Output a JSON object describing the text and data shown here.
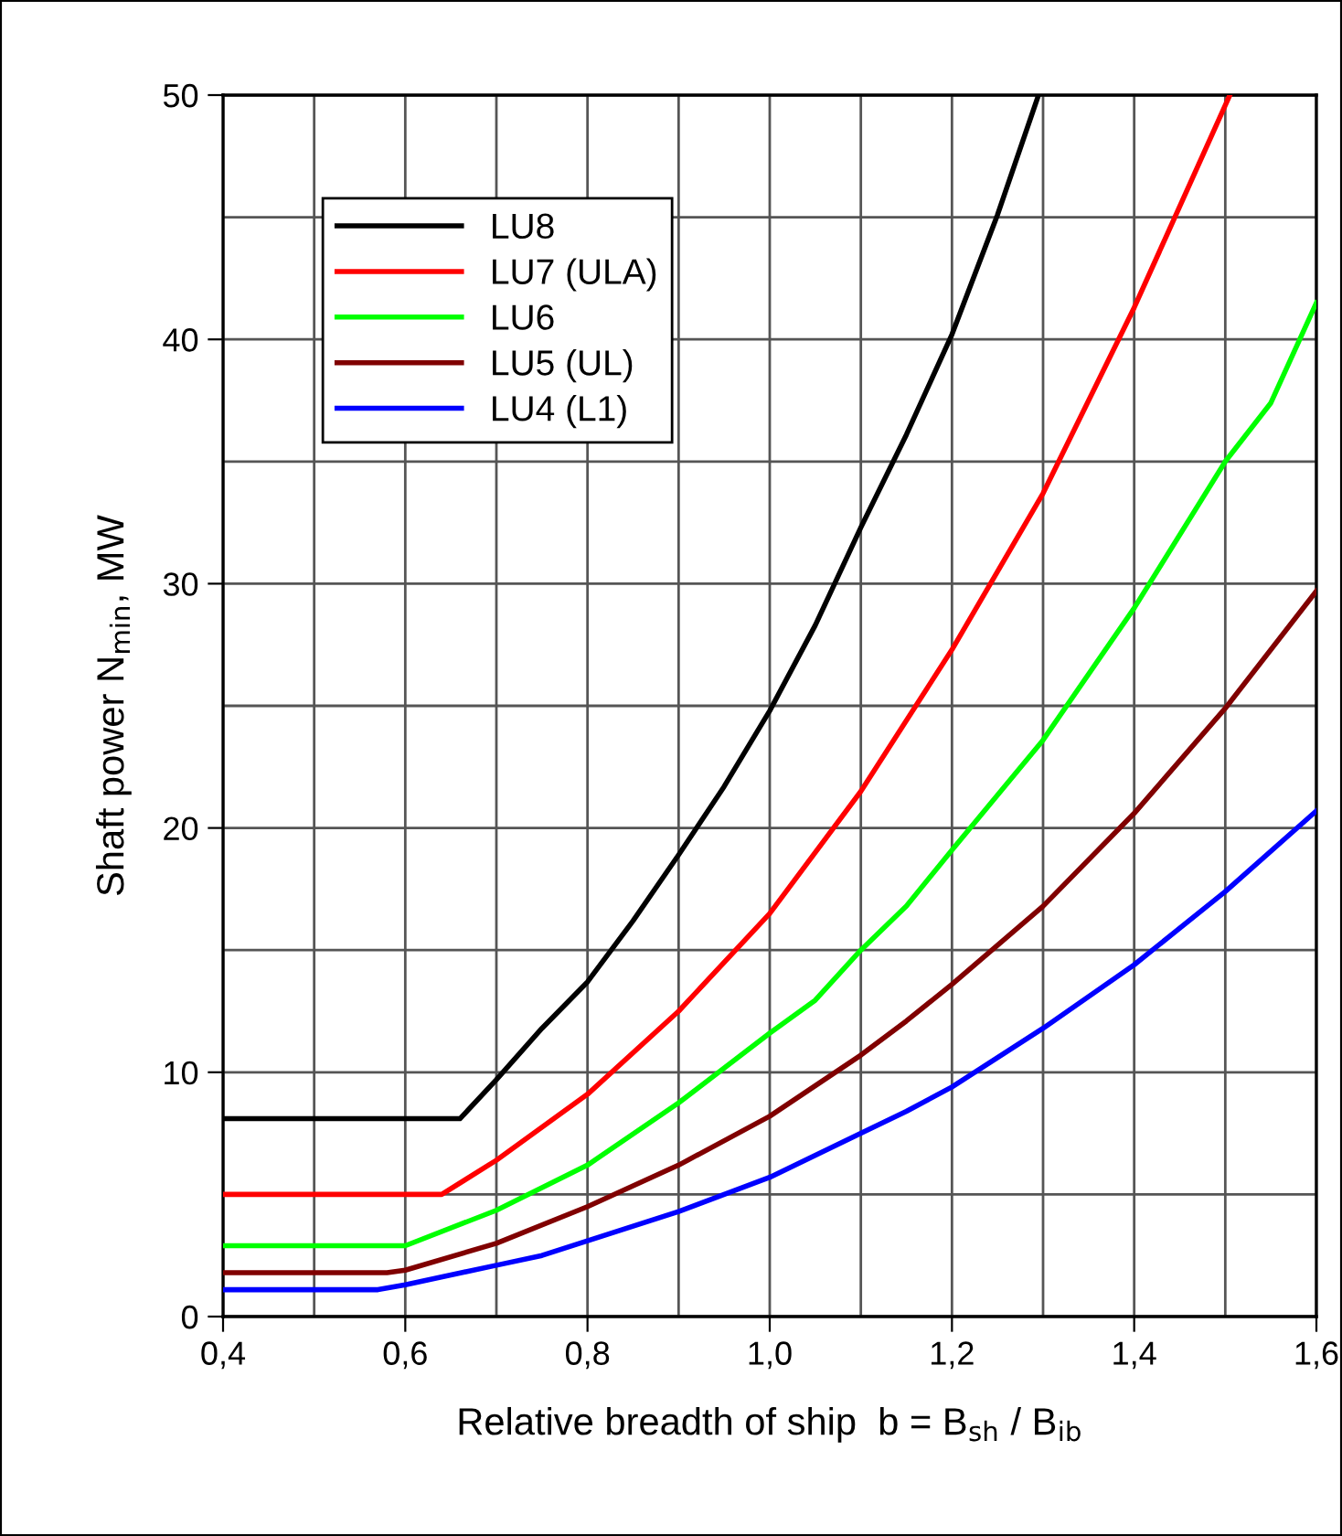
{
  "chart_data": {
    "type": "line",
    "xlabel": "Relative breadth of ship  b = B$_{sh}$ / B$_{ib}$",
    "ylabel": "Shaft power N$_{min}$, MW",
    "xlim": [
      0.4,
      1.6
    ],
    "ylim": [
      0,
      50
    ],
    "xticks": [
      {
        "value": 0.4,
        "label": "0,4"
      },
      {
        "value": 0.5,
        "label": null
      },
      {
        "value": 0.6,
        "label": "0,6"
      },
      {
        "value": 0.7,
        "label": null
      },
      {
        "value": 0.8,
        "label": "0,8"
      },
      {
        "value": 0.9,
        "label": null
      },
      {
        "value": 1.0,
        "label": "1,0"
      },
      {
        "value": 1.1,
        "label": null
      },
      {
        "value": 1.2,
        "label": "1,2"
      },
      {
        "value": 1.3,
        "label": null
      },
      {
        "value": 1.4,
        "label": "1,4"
      },
      {
        "value": 1.5,
        "label": null
      },
      {
        "value": 1.6,
        "label": "1,6"
      }
    ],
    "yticks": [
      0,
      {
        "value": 5,
        "label": null
      },
      10,
      {
        "value": 15,
        "label": null
      },
      20,
      {
        "value": 25,
        "label": null
      },
      30,
      {
        "value": 35,
        "label": null
      },
      40,
      {
        "value": 45,
        "label": null
      },
      50
    ],
    "grid": true,
    "legend": "top left",
    "marker": "none",
    "line_style": "solid",
    "series": [
      {
        "name": "LU8",
        "color": "#000000",
        "x": [
          0.4,
          0.66,
          0.7,
          0.75,
          0.8,
          0.85,
          0.9,
          0.95,
          1.0,
          1.05,
          1.1,
          1.15,
          1.2,
          1.25,
          1.295
        ],
        "values": [
          8.1,
          8.1,
          9.7,
          11.8,
          13.7,
          16.2,
          18.9,
          21.7,
          24.8,
          28.3,
          32.3,
          36.1,
          40.2,
          45.1,
          50
        ]
      },
      {
        "name": "LU7 (ULA)",
        "color": "#ff0000",
        "x": [
          0.4,
          0.64,
          0.7,
          0.8,
          0.9,
          1.0,
          1.1,
          1.2,
          1.3,
          1.4,
          1.505
        ],
        "values": [
          5.0,
          5.0,
          6.4,
          9.1,
          12.5,
          16.5,
          21.5,
          27.3,
          33.7,
          41.3,
          50
        ]
      },
      {
        "name": "LU6",
        "color": "#00ff00",
        "x": [
          0.4,
          0.6,
          0.7,
          0.8,
          0.9,
          1.0,
          1.05,
          1.1,
          1.15,
          1.2,
          1.3,
          1.4,
          1.5,
          1.55,
          1.6
        ],
        "values": [
          2.9,
          2.9,
          4.35,
          6.2,
          8.75,
          11.6,
          12.95,
          15.0,
          16.8,
          19.1,
          23.6,
          29.0,
          35.0,
          37.4,
          41.5
        ]
      },
      {
        "name": "LU5 (UL)",
        "color": "#800000",
        "x": [
          0.4,
          0.58,
          0.6,
          0.7,
          0.8,
          0.9,
          1.0,
          1.1,
          1.15,
          1.2,
          1.3,
          1.4,
          1.5,
          1.6
        ],
        "values": [
          1.8,
          1.8,
          1.9,
          3.0,
          4.5,
          6.2,
          8.2,
          10.7,
          12.1,
          13.6,
          16.8,
          20.6,
          24.9,
          29.7
        ]
      },
      {
        "name": "LU4 (L1)",
        "color": "#0000ff",
        "x": [
          0.4,
          0.57,
          0.6,
          0.7,
          0.75,
          0.8,
          0.9,
          1.0,
          1.1,
          1.15,
          1.2,
          1.3,
          1.4,
          1.5,
          1.6
        ],
        "values": [
          1.1,
          1.1,
          1.3,
          2.1,
          2.5,
          3.1,
          4.3,
          5.7,
          7.5,
          8.4,
          9.4,
          11.8,
          14.4,
          17.4,
          20.7
        ]
      }
    ]
  }
}
